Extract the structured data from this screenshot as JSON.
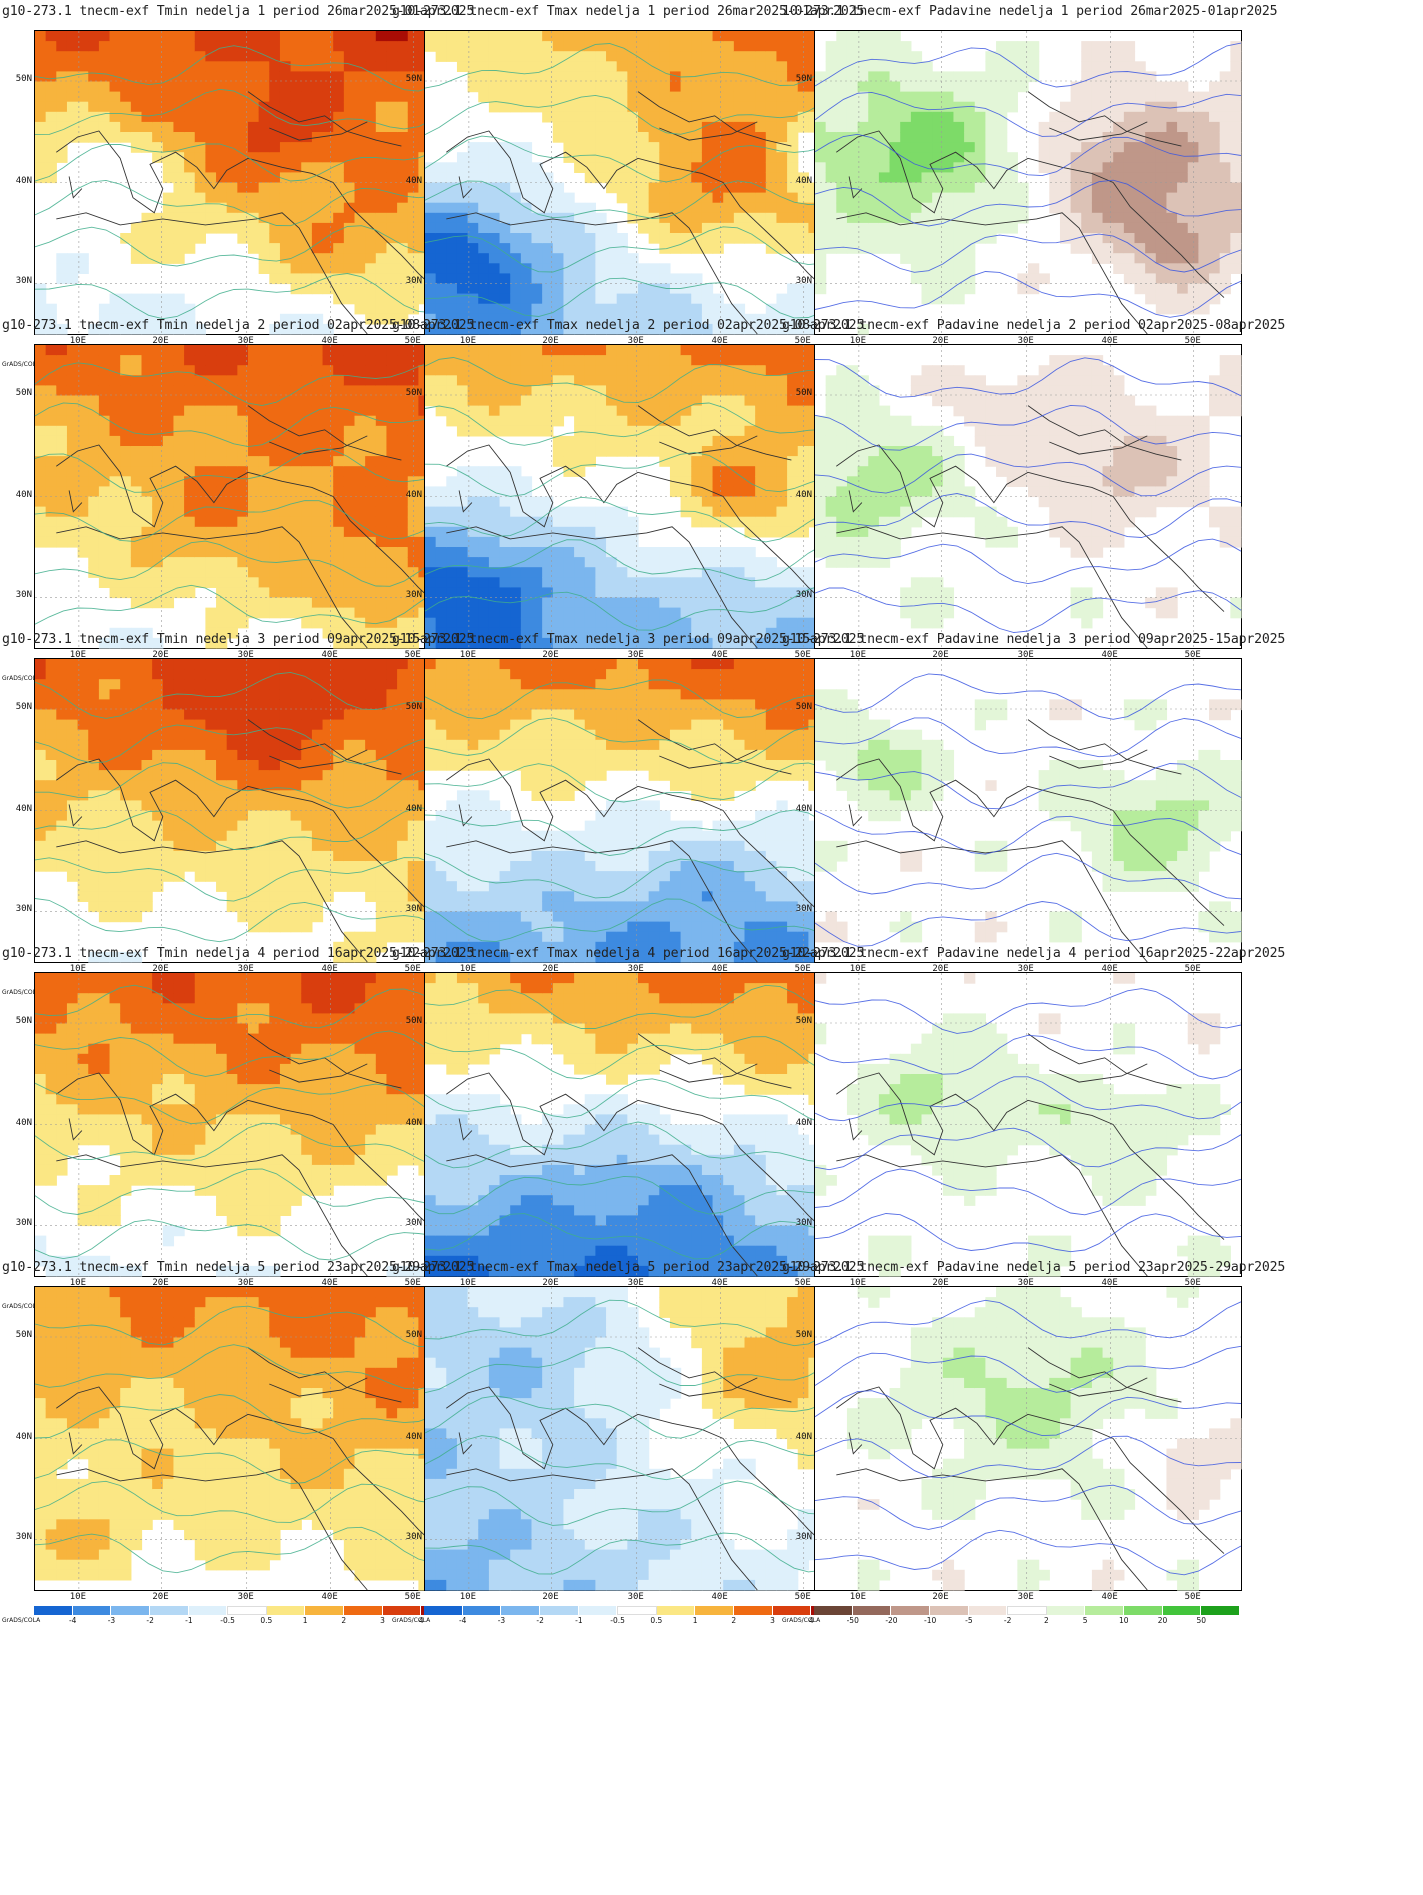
{
  "palettes": {
    "temperature": [
      "#1565d2",
      "#3d8ae0",
      "#7bb6ee",
      "#b4d8f5",
      "#def0fb",
      "#ffffff",
      "#fbe784",
      "#f7b43d",
      "#ef6a12",
      "#d93e0e",
      "#a80c05"
    ],
    "precipitation": [
      "#6b4536",
      "#94695c",
      "#bf9789",
      "#dcc2b6",
      "#f1e4dd",
      "#ffffff",
      "#e3f6d8",
      "#b6ec9c",
      "#7ddb68",
      "#42c43b",
      "#1da11c"
    ]
  },
  "legends": {
    "temperature": [
      "-4",
      "-3",
      "-2",
      "-1",
      "-0.5",
      "0.5",
      "1",
      "2",
      "3",
      "4"
    ],
    "precipitation": [
      "-50",
      "-20",
      "-10",
      "-5",
      "-2",
      "2",
      "5",
      "10",
      "20",
      "50"
    ]
  },
  "grads_label": "GrADS/COLA",
  "y_ticks": [
    "50N",
    "40N",
    "30N"
  ],
  "x_ticks": [
    "10E",
    "20E",
    "30E",
    "40E",
    "50E"
  ],
  "panels": [
    {
      "title": "g10-273.1 tnecm-exf Tmin nedelja 1 period 26mar2025-01apr2025",
      "palette": "temperature",
      "field": {
        "base": 0.3,
        "north": 0.55,
        "east": 0.15,
        "south": -0.2,
        "blobs": [
          [
            0.55,
            0.35,
            0.12,
            0.3
          ],
          [
            0.75,
            0.7,
            0.15,
            0.3
          ],
          [
            0.15,
            0.45,
            0.1,
            -0.4
          ]
        ]
      }
    },
    {
      "title": "g10-273.1 tnecm-exf Tmax nedelja 1 period 26mar2025-01apr2025",
      "palette": "temperature",
      "field": {
        "base": 0.0,
        "north": 0.5,
        "east": 0.35,
        "south": -0.2,
        "blobs": [
          [
            0.1,
            0.75,
            0.15,
            -0.6
          ],
          [
            0.7,
            0.5,
            0.18,
            0.5
          ],
          [
            0.95,
            0.4,
            0.1,
            -0.5
          ]
        ]
      }
    },
    {
      "title": "10-273.1 tnecm-exf Padavine nedelja 1 period 26mar2025-01apr2025",
      "palette": "precipitation",
      "field": {
        "base": 0.0,
        "north": 0.0,
        "east": -0.1,
        "south": 0.0,
        "blobs": [
          [
            0.25,
            0.4,
            0.18,
            0.55
          ],
          [
            0.75,
            0.45,
            0.16,
            -0.6
          ],
          [
            0.85,
            0.7,
            0.1,
            -0.4
          ]
        ]
      }
    },
    {
      "title": "g10-273.1 tnecm-exf Tmin nedelja 2 period 02apr2025-08apr2025",
      "palette": "temperature",
      "field": {
        "base": 0.35,
        "north": 0.55,
        "east": 0.2,
        "south": -0.05,
        "blobs": [
          [
            0.4,
            0.6,
            0.15,
            0.2
          ],
          [
            0.8,
            0.75,
            0.15,
            0.25
          ]
        ]
      }
    },
    {
      "title": "g10-273.1 tnecm-exf Tmax nedelja 2 period 02apr2025-08apr2025",
      "palette": "temperature",
      "field": {
        "base": -0.05,
        "north": 0.6,
        "east": 0.2,
        "south": -0.35,
        "blobs": [
          [
            0.1,
            0.8,
            0.15,
            -0.55
          ],
          [
            0.75,
            0.5,
            0.12,
            0.45
          ]
        ]
      }
    },
    {
      "title": "g10-273.1 tnecm-exf Padavine nedelja 2 period 02apr2025-08apr2025",
      "palette": "precipitation",
      "field": {
        "base": 0.0,
        "north": -0.05,
        "east": -0.05,
        "south": 0.0,
        "blobs": [
          [
            0.15,
            0.45,
            0.14,
            0.4
          ],
          [
            0.7,
            0.4,
            0.14,
            -0.35
          ],
          [
            0.45,
            0.2,
            0.1,
            -0.25
          ]
        ]
      }
    },
    {
      "title": "g10-273.1 tnecm-exf Tmin nedelja 3 period 09apr2025-15apr2025",
      "palette": "temperature",
      "field": {
        "base": 0.35,
        "north": 0.6,
        "east": 0.15,
        "south": 0.0,
        "blobs": [
          [
            0.5,
            0.2,
            0.15,
            0.25
          ]
        ]
      }
    },
    {
      "title": "g10-273.1 tnecm-exf Tmax nedelja 3 period 09apr2025-15apr2025",
      "palette": "temperature",
      "field": {
        "base": 0.0,
        "north": 0.6,
        "east": 0.15,
        "south": -0.45,
        "blobs": [
          [
            0.7,
            0.8,
            0.2,
            -0.3
          ]
        ]
      }
    },
    {
      "title": "g10-273.1 tnecm-exf Padavine nedelja 3 period 09apr2025-15apr2025",
      "palette": "precipitation",
      "field": {
        "base": 0.0,
        "north": 0.0,
        "east": 0.0,
        "south": 0.0,
        "blobs": [
          [
            0.15,
            0.35,
            0.1,
            0.4
          ],
          [
            0.8,
            0.55,
            0.14,
            0.4
          ]
        ]
      }
    },
    {
      "title": "g10-273.1 tnecm-exf Tmin nedelja 4 period 16apr2025-22apr2025",
      "palette": "temperature",
      "field": {
        "base": 0.3,
        "north": 0.6,
        "east": 0.1,
        "south": -0.05,
        "blobs": [
          [
            0.9,
            0.8,
            0.12,
            -0.15
          ]
        ]
      }
    },
    {
      "title": "g10-273.1 tnecm-exf Tmax nedelja 4 period 16apr2025-22apr2025",
      "palette": "temperature",
      "field": {
        "base": -0.1,
        "north": 0.5,
        "east": 0.25,
        "south": -0.6,
        "blobs": [
          [
            0.55,
            0.75,
            0.2,
            -0.3
          ]
        ]
      }
    },
    {
      "title": "g10-273.1 tnecm-exf Padavine nedelja 4 period 16apr2025-22apr2025",
      "palette": "precipitation",
      "field": {
        "base": 0.0,
        "north": -0.05,
        "east": 0.0,
        "south": 0.0,
        "blobs": [
          [
            0.3,
            0.4,
            0.14,
            0.35
          ],
          [
            0.7,
            0.5,
            0.12,
            0.3
          ]
        ]
      }
    },
    {
      "title": "g10-273.1 tnecm-exf Tmin nedelja 5 period 23apr2025-29apr2025",
      "palette": "temperature",
      "field": {
        "base": 0.3,
        "north": 0.45,
        "east": 0.15,
        "south": 0.0,
        "blobs": [
          [
            0.1,
            0.85,
            0.12,
            0.25
          ]
        ]
      }
    },
    {
      "title": "g10-273.1 tnecm-exf Tmax nedelja 5 period 23apr2025-29apr2025",
      "palette": "temperature",
      "field": {
        "base": -0.15,
        "north": 0.1,
        "east": 0.45,
        "south": -0.25,
        "blobs": [
          [
            0.3,
            0.2,
            0.18,
            -0.3
          ],
          [
            0.8,
            0.3,
            0.14,
            0.3
          ]
        ]
      }
    },
    {
      "title": "g10-273.1 tnecm-exf Padavine nedelja 5 period 23apr2025-29apr2025",
      "palette": "precipitation",
      "field": {
        "base": 0.0,
        "north": 0.0,
        "east": 0.0,
        "south": 0.0,
        "blobs": [
          [
            0.5,
            0.35,
            0.2,
            0.35
          ],
          [
            0.9,
            0.55,
            0.08,
            -0.3
          ]
        ]
      }
    }
  ]
}
